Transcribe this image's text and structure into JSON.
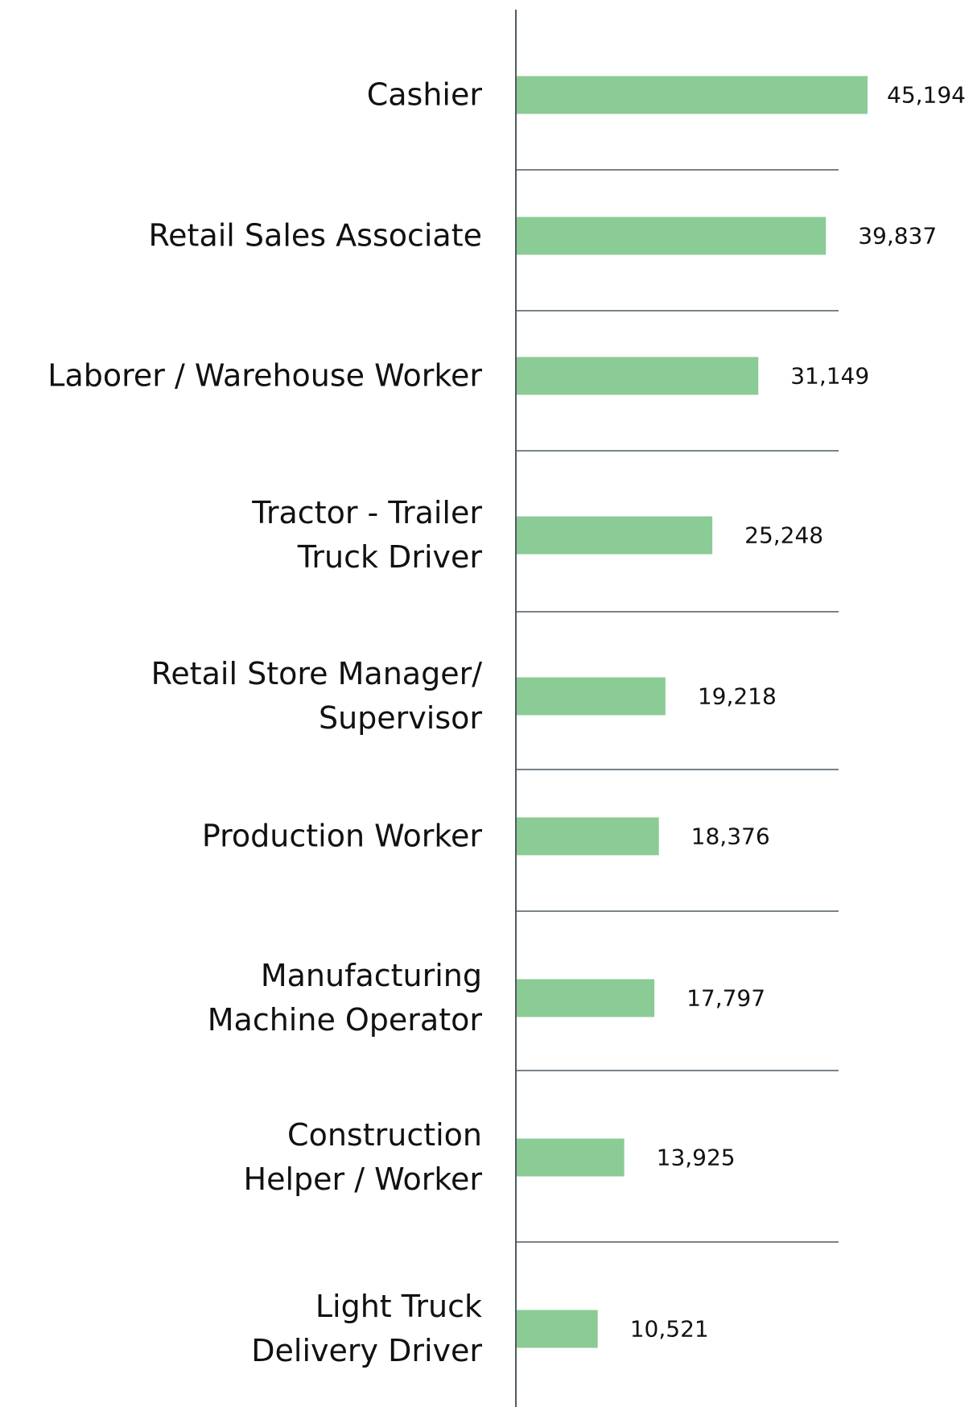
{
  "chart_data": {
    "type": "barh",
    "categories": [
      "Cashier",
      "Retail Sales Associate",
      "Laborer / Warehouse Worker",
      "Tractor - Trailer\nTruck Driver",
      "Retail Store Manager/\nSupervisor",
      "Production Worker",
      "Manufacturing\nMachine Operator",
      "Construction\nHelper / Worker",
      "Light Truck\nDelivery Driver"
    ],
    "values": [
      45194,
      39837,
      31149,
      25248,
      19218,
      18376,
      17797,
      13925,
      10521
    ],
    "value_labels": [
      "45,194",
      "39,837",
      "31,149",
      "25,248",
      "19,218",
      "18,376",
      "17,797",
      "13,925",
      "10,521"
    ],
    "color": "#8bcb96"
  }
}
